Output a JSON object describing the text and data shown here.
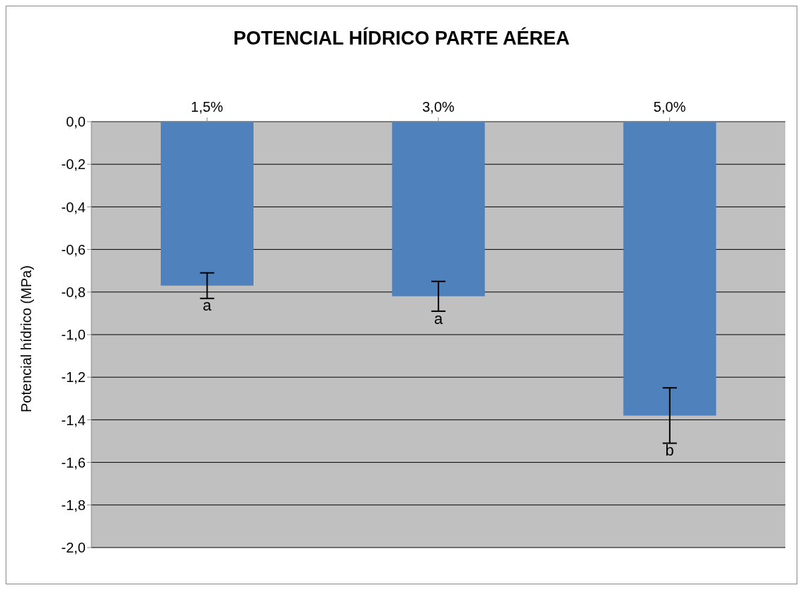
{
  "chart_data": {
    "type": "bar",
    "title": "POTENCIAL HÍDRICO PARTE AÉREA",
    "ylabel": "Potencial hídrico (MPa)",
    "categories": [
      "1,5%",
      "3,0%",
      "5,0%"
    ],
    "values": [
      -0.77,
      -0.82,
      -1.38
    ],
    "errors": [
      0.06,
      0.07,
      0.13
    ],
    "color": "#4f81bd",
    "ylim": [
      -2,
      0
    ],
    "yticks": [
      {
        "value": 0,
        "label": "0,0"
      },
      {
        "value": -0.2,
        "label": "-0,2"
      },
      {
        "value": -0.4,
        "label": "-0,4"
      },
      {
        "value": -0.6,
        "label": "-0,6"
      },
      {
        "value": -0.8,
        "label": "-0,8"
      },
      {
        "value": -1,
        "label": "-1,0"
      },
      {
        "value": -1.2,
        "label": "-1,2"
      },
      {
        "value": -1.4,
        "label": "-1,4"
      },
      {
        "value": -1.6,
        "label": "-1,6"
      },
      {
        "value": -1.8,
        "label": "-1,8"
      },
      {
        "value": -2,
        "label": "-2,0"
      }
    ],
    "grid": "y",
    "annotations": [
      "a",
      "a",
      "b"
    ]
  }
}
